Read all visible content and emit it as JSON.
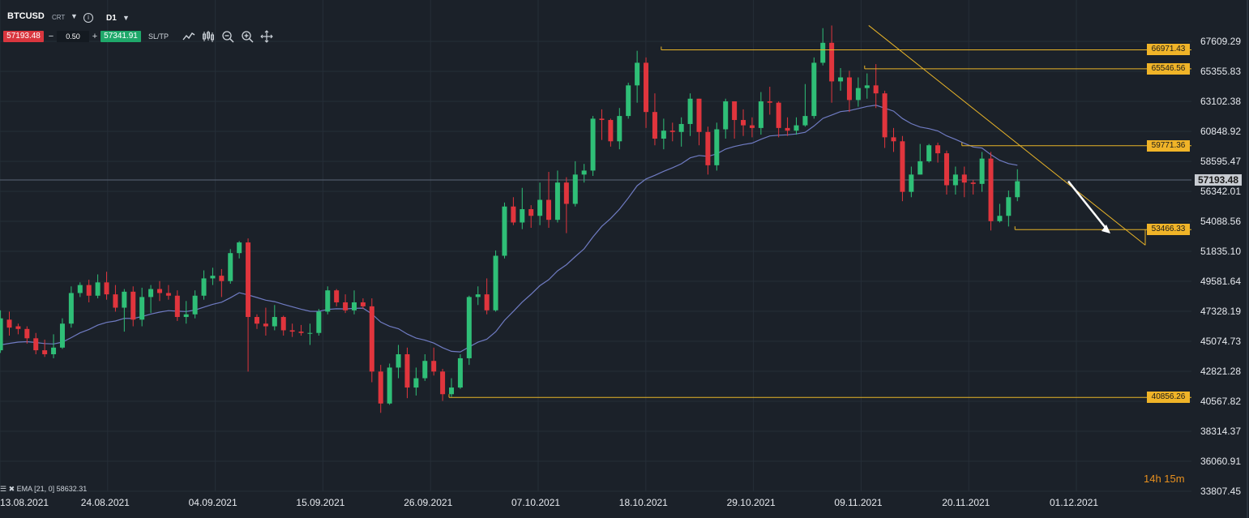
{
  "toolbar": {
    "symbol": "BTCUSD",
    "symbol_suffix": "CRT",
    "info_icon": "i",
    "timeframe": "D1",
    "sell_price": "57193.48",
    "minus_label": "−",
    "lot_size": "0.50",
    "plus_label": "+",
    "buy_price": "57341.91",
    "sltp_label": "SL/TP",
    "icons": [
      "line-chart-icon",
      "candle-chart-icon",
      "zoom-out-icon",
      "zoom-in-icon",
      "crosshair-icon"
    ]
  },
  "colors": {
    "background": "#1b2129",
    "bull": "#2fbf77",
    "bear": "#e0353d",
    "ema": "#6f7bc2",
    "level": "#e8b428",
    "trend": "#e8b428",
    "arrow": "#ffffff",
    "current_price_line": "#5b6676"
  },
  "legend": {
    "indicator": "EMA [21, 0] 58632.31"
  },
  "countdown": "14h 15m",
  "chart_data": {
    "type": "candlestick",
    "symbol": "BTCUSD",
    "timeframe": "D1",
    "ylim": [
      33000,
      69000
    ],
    "y_ticks": [
      "67609.29",
      "65355.83",
      "63102.38",
      "60848.92",
      "58595.47",
      "56342.01",
      "54088.56",
      "51835.10",
      "49581.64",
      "47328.19",
      "45074.73",
      "42821.28",
      "40567.82",
      "38314.37",
      "36060.91",
      "33807.45"
    ],
    "x_ticks": [
      "13.08.2021",
      "24.08.2021",
      "04.09.2021",
      "15.09.2021",
      "26.09.2021",
      "07.10.2021",
      "18.10.2021",
      "29.10.2021",
      "09.11.2021",
      "20.11.2021",
      "01.12.2021"
    ],
    "current_price": "57193.48",
    "ema": {
      "name": "EMA [21, 0]",
      "value": "58632.31"
    },
    "levels": [
      {
        "price": "66971.43"
      },
      {
        "price": "65546.56"
      },
      {
        "price": "59771.36"
      },
      {
        "price": "53466.33"
      },
      {
        "price": "40856.26"
      }
    ],
    "candles": [
      [
        44400,
        46800,
        44200,
        47400
      ],
      [
        46700,
        46100,
        45500,
        47300
      ],
      [
        46200,
        46000,
        45600,
        46400
      ],
      [
        46000,
        45300,
        44900,
        46200
      ],
      [
        45300,
        44400,
        44100,
        45700
      ],
      [
        44400,
        44100,
        43900,
        45200
      ],
      [
        44100,
        44600,
        43800,
        45600
      ],
      [
        44600,
        46400,
        44500,
        46800
      ],
      [
        46400,
        48700,
        46100,
        49200
      ],
      [
        48700,
        49300,
        48400,
        49500
      ],
      [
        49300,
        48500,
        48000,
        49700
      ],
      [
        48500,
        49500,
        48300,
        50100
      ],
      [
        49500,
        48600,
        48200,
        50300
      ],
      [
        48600,
        47600,
        47300,
        49300
      ],
      [
        47600,
        48800,
        45800,
        49000
      ],
      [
        48800,
        46700,
        46200,
        49200
      ],
      [
        46700,
        48400,
        46200,
        49100
      ],
      [
        48400,
        49000,
        47200,
        49300
      ],
      [
        49000,
        48700,
        48100,
        49600
      ],
      [
        48700,
        48500,
        48200,
        49300
      ],
      [
        48500,
        46900,
        46600,
        48900
      ],
      [
        46900,
        47100,
        46400,
        48100
      ],
      [
        47100,
        48500,
        46800,
        48900
      ],
      [
        48500,
        49800,
        48200,
        50400
      ],
      [
        49800,
        50000,
        49300,
        50600
      ],
      [
        50000,
        49600,
        48400,
        50500
      ],
      [
        49600,
        51700,
        49400,
        52000
      ],
      [
        51700,
        52500,
        51300,
        52600
      ],
      [
        52500,
        46900,
        42800,
        52800
      ],
      [
        46900,
        46400,
        46000,
        47100
      ],
      [
        46400,
        46200,
        45500,
        47600
      ],
      [
        46200,
        46900,
        45900,
        47800
      ],
      [
        46900,
        45900,
        45500,
        47000
      ],
      [
        45900,
        45800,
        45400,
        46400
      ],
      [
        45800,
        45700,
        45500,
        46300
      ],
      [
        45700,
        45700,
        44800,
        46400
      ],
      [
        45700,
        47300,
        45500,
        47500
      ],
      [
        47300,
        48900,
        47100,
        49200
      ],
      [
        48900,
        48000,
        47700,
        49000
      ],
      [
        48000,
        47400,
        47200,
        48600
      ],
      [
        47400,
        48000,
        47100,
        48900
      ],
      [
        48000,
        47700,
        47500,
        48300
      ],
      [
        47700,
        42800,
        42000,
        48300
      ],
      [
        42800,
        40400,
        39700,
        43300
      ],
      [
        40400,
        43100,
        40300,
        43400
      ],
      [
        43100,
        44100,
        42300,
        44800
      ],
      [
        44100,
        41600,
        40800,
        44600
      ],
      [
        41600,
        42300,
        41000,
        43100
      ],
      [
        42300,
        43600,
        42100,
        44100
      ],
      [
        43600,
        42800,
        42500,
        44600
      ],
      [
        42800,
        41100,
        40600,
        43000
      ],
      [
        41100,
        41600,
        40900,
        42300
      ],
      [
        41600,
        43800,
        41500,
        44100
      ],
      [
        43800,
        48400,
        43300,
        48500
      ],
      [
        48400,
        48600,
        47800,
        49200
      ],
      [
        48600,
        47400,
        47100,
        49800
      ],
      [
        47400,
        51500,
        47300,
        51900
      ],
      [
        51500,
        55200,
        51300,
        55500
      ],
      [
        55200,
        54000,
        53800,
        55900
      ],
      [
        54000,
        55000,
        53500,
        56600
      ],
      [
        55000,
        54500,
        53600,
        55300
      ],
      [
        54500,
        55700,
        53800,
        57000
      ],
      [
        55700,
        54200,
        53600,
        57800
      ],
      [
        54200,
        57000,
        54000,
        57900
      ],
      [
        57000,
        55400,
        53200,
        57400
      ],
      [
        55400,
        57600,
        55200,
        58600
      ],
      [
        57600,
        57900,
        57000,
        58400
      ],
      [
        57900,
        61800,
        57500,
        62000
      ],
      [
        61800,
        61700,
        60200,
        62500
      ],
      [
        61700,
        60100,
        59700,
        61800
      ],
      [
        60100,
        62000,
        59500,
        62600
      ],
      [
        62000,
        64300,
        61800,
        64500
      ],
      [
        64300,
        66000,
        63000,
        66900
      ],
      [
        66000,
        62300,
        61100,
        66400
      ],
      [
        62300,
        60300,
        59800,
        63700
      ],
      [
        60300,
        60900,
        59500,
        61800
      ],
      [
        60900,
        60800,
        60100,
        61500
      ],
      [
        60800,
        61400,
        59700,
        61900
      ],
      [
        61400,
        63300,
        60500,
        63700
      ],
      [
        63300,
        60800,
        59800,
        63300
      ],
      [
        60800,
        58300,
        57600,
        61200
      ],
      [
        58300,
        61000,
        57900,
        61500
      ],
      [
        61000,
        63100,
        60300,
        63300
      ],
      [
        63100,
        61700,
        60300,
        63100
      ],
      [
        61700,
        61300,
        60500,
        62500
      ],
      [
        61300,
        61100,
        60400,
        61900
      ],
      [
        61100,
        63100,
        60600,
        63800
      ],
      [
        63100,
        63000,
        62100,
        64200
      ],
      [
        63000,
        61100,
        60400,
        63100
      ],
      [
        61100,
        60900,
        60500,
        61900
      ],
      [
        60900,
        61300,
        60600,
        61900
      ],
      [
        61300,
        62000,
        61200,
        64400
      ],
      [
        62000,
        66000,
        61800,
        66400
      ],
      [
        66000,
        67500,
        65800,
        68600
      ],
      [
        67500,
        64600,
        63000,
        68800
      ],
      [
        64600,
        64900,
        63900,
        65600
      ],
      [
        64900,
        63200,
        62300,
        65400
      ],
      [
        63200,
        64100,
        62700,
        64900
      ],
      [
        64100,
        64300,
        63300,
        65200
      ],
      [
        64300,
        63700,
        62600,
        65900
      ],
      [
        63700,
        60400,
        59600,
        63900
      ],
      [
        60400,
        60100,
        59300,
        61100
      ],
      [
        60100,
        56300,
        55600,
        60500
      ],
      [
        56300,
        57600,
        55900,
        58200
      ],
      [
        57600,
        58600,
        57600,
        59900
      ],
      [
        58600,
        59800,
        58500,
        59900
      ],
      [
        59800,
        59200,
        58500,
        60000
      ],
      [
        59200,
        56800,
        56100,
        59400
      ],
      [
        56800,
        57600,
        56100,
        58200
      ],
      [
        57600,
        57000,
        55900,
        58200
      ],
      [
        57000,
        56900,
        56100,
        57200
      ],
      [
        56900,
        58800,
        56300,
        59300
      ],
      [
        58800,
        54100,
        53400,
        59300
      ],
      [
        54100,
        54500,
        54000,
        55400
      ],
      [
        54500,
        55900,
        53700,
        56400
      ],
      [
        55900,
        57100,
        55600,
        58000
      ]
    ]
  }
}
